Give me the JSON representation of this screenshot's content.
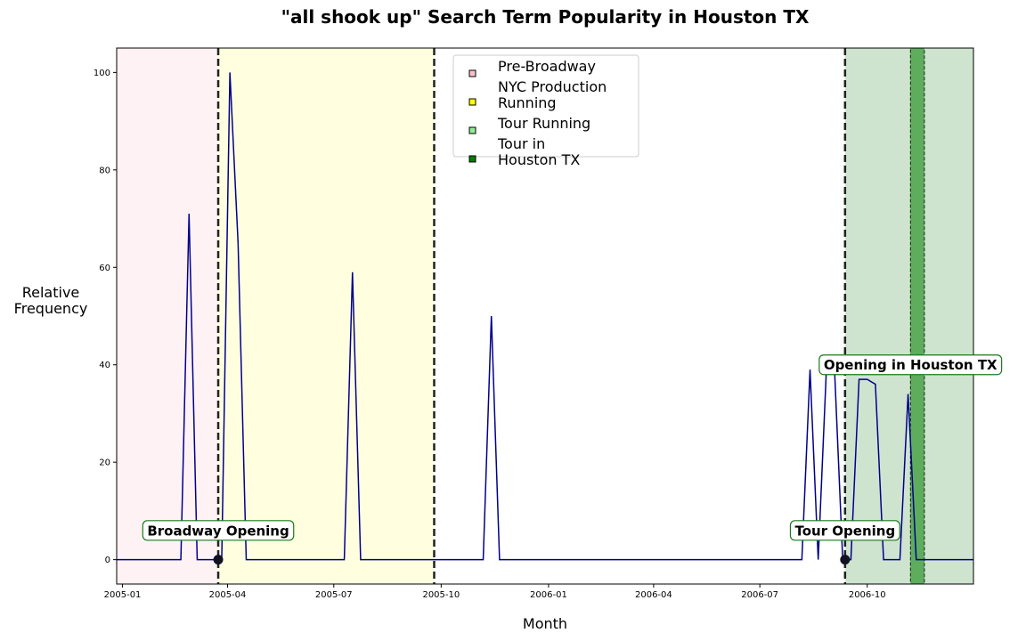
{
  "chart_data": {
    "type": "line",
    "title": "\"all shook up\" Search Term Popularity in Houston TX",
    "xlabel": "Month",
    "ylabel": "Relative\nFrequency",
    "xlim": [
      "2004-12-27",
      "2006-12-31"
    ],
    "ylim": [
      -5,
      105
    ],
    "x_ticks": [
      "2005-01-01",
      "2005-04-01",
      "2005-07-01",
      "2005-10-01",
      "2006-01-01",
      "2006-04-01",
      "2006-07-01",
      "2006-10-01"
    ],
    "x_tick_labels": [
      "2005-01",
      "2005-04",
      "2005-07",
      "2005-10",
      "2006-01",
      "2006-04",
      "2006-07",
      "2006-10"
    ],
    "y_ticks": [
      0,
      20,
      40,
      60,
      80,
      100
    ],
    "grid": false,
    "series": [
      {
        "color": "#00008b",
        "points": [
          [
            "2004-12-27",
            0
          ],
          [
            "2005-02-20",
            0
          ],
          [
            "2005-02-27",
            71
          ],
          [
            "2005-03-06",
            0
          ],
          [
            "2005-03-20",
            0
          ],
          [
            "2005-03-27",
            0
          ],
          [
            "2005-04-03",
            100
          ],
          [
            "2005-04-10",
            65
          ],
          [
            "2005-04-17",
            0
          ],
          [
            "2005-07-10",
            0
          ],
          [
            "2005-07-17",
            59
          ],
          [
            "2005-07-24",
            0
          ],
          [
            "2005-11-06",
            0
          ],
          [
            "2005-11-13",
            50
          ],
          [
            "2005-11-20",
            0
          ],
          [
            "2006-08-06",
            0
          ],
          [
            "2006-08-13",
            39
          ],
          [
            "2006-08-20",
            0
          ],
          [
            "2006-08-27",
            39
          ],
          [
            "2006-09-03",
            39
          ],
          [
            "2006-09-10",
            0
          ],
          [
            "2006-09-17",
            0
          ],
          [
            "2006-09-24",
            37
          ],
          [
            "2006-10-01",
            37
          ],
          [
            "2006-10-08",
            36
          ],
          [
            "2006-10-15",
            0
          ],
          [
            "2006-10-29",
            0
          ],
          [
            "2006-11-05",
            34
          ],
          [
            "2006-11-12",
            0
          ],
          [
            "2006-12-31",
            0
          ]
        ]
      }
    ],
    "regions": [
      {
        "label": "Pre-Broadway",
        "start": "2004-12-27",
        "end": "2005-03-24",
        "color": "#ffc0cb",
        "opacity": 0.2
      },
      {
        "label": "NYC Production Running",
        "start": "2005-03-24",
        "end": "2005-09-25",
        "color": "#ffff00",
        "opacity": 0.12
      },
      {
        "label": "Tour Running",
        "start": "2006-09-12",
        "end": "2006-12-31",
        "color": "#2e8b2e",
        "opacity": 0.23
      },
      {
        "label": "Tour in Houston TX",
        "start": "2006-11-07",
        "end": "2006-11-19",
        "color": "#008000",
        "opacity": 0.55
      }
    ],
    "vlines": [
      "2005-03-24",
      "2005-09-25",
      "2006-09-12"
    ],
    "markers": [
      {
        "x": "2005-03-24",
        "y": 0
      },
      {
        "x": "2006-09-12",
        "y": 0
      }
    ],
    "annotations": [
      {
        "text": "Broadway Opening",
        "x": "2005-03-24",
        "y": 6
      },
      {
        "text": "Tour Opening",
        "x": "2006-09-12",
        "y": 6
      },
      {
        "text": "Opening in Houston TX",
        "x": "2006-11-07",
        "y": 40
      }
    ],
    "legend": {
      "placement": "top-center",
      "entries": [
        {
          "label": "Pre-Broadway",
          "color": "#ffc0cb"
        },
        {
          "label": "NYC Production Running",
          "color": "#ffff00"
        },
        {
          "label": "Tour Running",
          "color": "#90ee90"
        },
        {
          "label": "Tour in Houston TX",
          "color": "#008000"
        }
      ]
    }
  }
}
